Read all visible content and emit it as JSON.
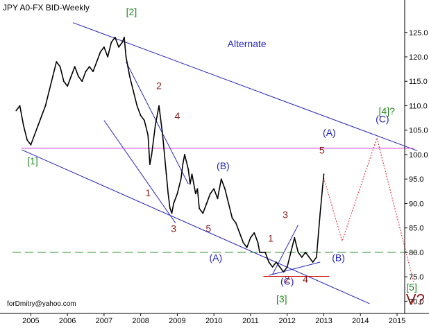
{
  "chart_data": {
    "type": "line",
    "title": "JPY A0-FX BID-Weekly",
    "watermark": "forDmitry@yahoo.com",
    "x_ticks": [
      "2005",
      "2006",
      "2007",
      "2008",
      "2009",
      "2010",
      "2011",
      "2012",
      "2013",
      "2014",
      "2015"
    ],
    "y_ticks": [
      "70.0",
      "75.0",
      "80.0",
      "85.0",
      "90.0",
      "95.0",
      "100.0",
      "105.0",
      "110.0",
      "115.0",
      "120.0",
      "125.0"
    ],
    "ylim": [
      67.5,
      130.5
    ],
    "xlim": [
      2004.5,
      2015.55
    ],
    "grid": false,
    "legend": "none",
    "colors": {
      "price": "#000000",
      "channel": "#2222bb",
      "level": "#cc33cc",
      "support": "#228822",
      "projection": "#dd2222",
      "resistance": "#cc0000",
      "green_label": "#228822",
      "blue_label": "#2222bb",
      "red_label": "#8a1a1a"
    },
    "series": [
      {
        "x": [
          2004.6,
          2004.7,
          2004.8,
          2004.9,
          2005.0,
          2005.1,
          2005.2,
          2005.3,
          2005.4,
          2005.5,
          2005.6,
          2005.7,
          2005.8,
          2005.9,
          2006.0,
          2006.1,
          2006.2,
          2006.3,
          2006.4,
          2006.5,
          2006.6,
          2006.7,
          2006.8,
          2006.9,
          2007.0,
          2007.1,
          2007.2,
          2007.3,
          2007.4,
          2007.5,
          2007.55,
          2007.6,
          2007.7,
          2007.8,
          2007.9,
          2008.0,
          2008.1,
          2008.2,
          2008.25,
          2008.3,
          2008.4,
          2008.5,
          2008.6,
          2008.7,
          2008.75,
          2008.8,
          2008.85,
          2008.9,
          2009.0,
          2009.1,
          2009.15,
          2009.2,
          2009.3,
          2009.35,
          2009.4,
          2009.5,
          2009.55,
          2009.6,
          2009.7,
          2009.8,
          2009.9,
          2010.0,
          2010.1,
          2010.2,
          2010.3,
          2010.4,
          2010.5,
          2010.6,
          2010.7,
          2010.8,
          2010.9,
          2011.0,
          2011.1,
          2011.2,
          2011.25,
          2011.3,
          2011.4,
          2011.5,
          2011.6,
          2011.7,
          2011.8,
          2011.9,
          2012.0,
          2012.1,
          2012.2,
          2012.3,
          2012.4,
          2012.5,
          2012.6,
          2012.7,
          2012.8,
          2012.9,
          2013.0
        ],
        "y": [
          109,
          110,
          106,
          103,
          102,
          104,
          106,
          108,
          110,
          113,
          116,
          119,
          118,
          115,
          114,
          116,
          118,
          116,
          115,
          117,
          118,
          117,
          119,
          121,
          122,
          120,
          123,
          124,
          122,
          123,
          124,
          120,
          116,
          113,
          110,
          108,
          107,
          104,
          98,
          100,
          106,
          110,
          104,
          96,
          92,
          89,
          88,
          90,
          92,
          95,
          98,
          100,
          97,
          94,
          96,
          92,
          93,
          89,
          88,
          90,
          92,
          93,
          91,
          95,
          93,
          90,
          87,
          86,
          84,
          82,
          81,
          83,
          84,
          82,
          80,
          80,
          80,
          78,
          77,
          78,
          77,
          76,
          77,
          80,
          83,
          80,
          79,
          80,
          79,
          78,
          79,
          88,
          96
        ]
      }
    ],
    "annotations": [
      {
        "text": "[2]",
        "x": 2007.75,
        "y": 128.5,
        "color": "green_label"
      },
      {
        "text": "[1]",
        "x": 2005.05,
        "y": 98.0,
        "color": "green_label"
      },
      {
        "text": "[3]",
        "x": 2011.85,
        "y": 69.8,
        "color": "green_label"
      },
      {
        "text": "[4]?",
        "x": 2014.72,
        "y": 108.2,
        "color": "green_label"
      },
      {
        "text": "[5]",
        "x": 2015.4,
        "y": 72.2,
        "color": "green_label"
      },
      {
        "text": "Alternate",
        "x": 2010.9,
        "y": 122.0,
        "color": "blue_label"
      },
      {
        "text": "(A)",
        "x": 2013.15,
        "y": 103.8,
        "color": "blue_label"
      },
      {
        "text": "(B)",
        "x": 2010.25,
        "y": 97.0,
        "color": "blue_label"
      },
      {
        "text": "(A)",
        "x": 2010.05,
        "y": 78.2,
        "color": "blue_label"
      },
      {
        "text": "(B)",
        "x": 2013.4,
        "y": 78.2,
        "color": "blue_label"
      },
      {
        "text": "(C)",
        "x": 2014.6,
        "y": 106.6,
        "color": "blue_label"
      },
      {
        "text": "(C)",
        "x": 2012.0,
        "y": 73.4,
        "color": "blue_label"
      },
      {
        "text": "1",
        "x": 2008.2,
        "y": 91.5,
        "color": "red_label"
      },
      {
        "text": "2",
        "x": 2008.5,
        "y": 113.4,
        "color": "red_label"
      },
      {
        "text": "3",
        "x": 2008.9,
        "y": 84.2,
        "color": "red_label"
      },
      {
        "text": "4",
        "x": 2009.0,
        "y": 107.2,
        "color": "red_label"
      },
      {
        "text": "5",
        "x": 2009.85,
        "y": 84.2,
        "color": "red_label"
      },
      {
        "text": "1",
        "x": 2011.55,
        "y": 82.2,
        "color": "red_label"
      },
      {
        "text": "2",
        "x": 2012.0,
        "y": 73.8,
        "color": "red_label"
      },
      {
        "text": "3",
        "x": 2011.95,
        "y": 87.0,
        "color": "red_label"
      },
      {
        "text": "4",
        "x": 2012.5,
        "y": 73.8,
        "color": "red_label"
      },
      {
        "text": "5",
        "x": 2012.95,
        "y": 100.2,
        "color": "red_label"
      },
      {
        "text": "V?",
        "x": 2015.5,
        "y": 69.3,
        "color": "red_label"
      }
    ]
  }
}
